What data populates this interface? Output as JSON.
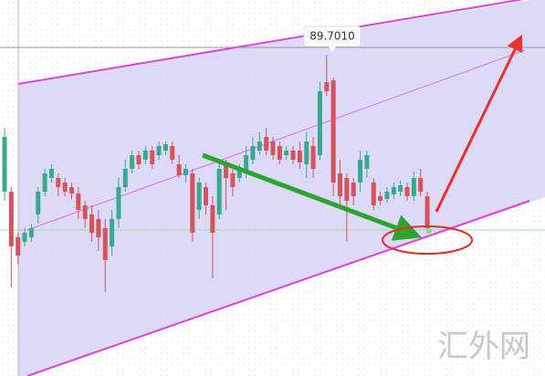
{
  "chart_data": {
    "type": "candlestick",
    "annotation": "89.7010",
    "watermark": "汇外网",
    "ylim": [
      87.94,
      90
    ],
    "up_color": "#3aa88e",
    "down_color": "#d4545c",
    "open": [
      88.95,
      88.95,
      88.7,
      88.675,
      88.7,
      88.825,
      88.95,
      89.025,
      89.025,
      89.0,
      88.975,
      88.94,
      88.875,
      88.825,
      88.8,
      88.75,
      88.65,
      88.8,
      88.975,
      89.075,
      89.15,
      89.125,
      89.175,
      89.15,
      89.175,
      89.2,
      89.1,
      89.04,
      89.05,
      88.85,
      88.975,
      88.875,
      88.825,
      89.1,
      89.05,
      89.025,
      89.05,
      89.125,
      89.175,
      89.25,
      89.225,
      89.2,
      89.15,
      89.175,
      89.175,
      89.1,
      89.2,
      89.15,
      89.55,
      89.56,
      89.05,
      89.025,
      89.0,
      89.0,
      89.075,
      89.0,
      88.925,
      88.91,
      88.935,
      88.95,
      88.975,
      88.925,
      89.025,
      88.925
    ],
    "high": [
      89.3,
      88.975,
      88.725,
      88.75,
      88.775,
      88.975,
      89.075,
      89.1,
      89.05,
      89.025,
      89.0,
      88.975,
      88.9,
      88.875,
      88.85,
      88.8,
      88.85,
      89.025,
      89.125,
      89.175,
      89.175,
      89.2,
      89.2,
      89.225,
      89.225,
      89.225,
      89.15,
      89.1,
      89.075,
      89.025,
      89.0,
      88.925,
      89.125,
      89.125,
      89.075,
      89.1,
      89.2,
      89.25,
      89.275,
      89.3,
      89.25,
      89.225,
      89.2,
      89.2,
      89.225,
      89.275,
      89.25,
      89.55,
      89.7,
      89.575,
      89.125,
      89.05,
      89.025,
      89.175,
      89.175,
      89.025,
      88.95,
      88.975,
      89.0,
      89.01,
      89.0,
      89.06,
      89.075,
      88.95
    ],
    "low": [
      88.9,
      88.425,
      88.55,
      88.65,
      88.675,
      88.775,
      88.925,
      89.0,
      88.925,
      88.925,
      88.91,
      88.8,
      88.75,
      88.675,
      88.625,
      88.4,
      88.6,
      88.75,
      88.95,
      89.05,
      89.075,
      89.1,
      89.075,
      89.125,
      89.15,
      89.1,
      89.025,
      89.0,
      88.675,
      88.8,
      88.825,
      88.475,
      88.8,
      88.85,
      88.925,
      89.0,
      89.025,
      89.1,
      89.15,
      89.15,
      89.125,
      89.1,
      89.125,
      89.1,
      89.075,
      89.025,
      89.025,
      89.125,
      89.475,
      88.925,
      88.875,
      88.675,
      88.875,
      88.95,
      89.025,
      88.85,
      88.875,
      88.89,
      88.91,
      88.925,
      88.9,
      88.9,
      88.925,
      88.725
    ],
    "close": [
      89.25,
      88.65,
      88.6,
      88.725,
      88.75,
      88.95,
      89.05,
      89.075,
      88.975,
      88.95,
      88.94,
      88.85,
      88.8,
      88.725,
      88.7,
      88.575,
      88.8,
      88.975,
      89.075,
      89.15,
      89.1,
      89.175,
      89.1,
      89.2,
      89.21,
      89.125,
      89.04,
      89.075,
      88.725,
      89.0,
      88.875,
      88.725,
      89.075,
      89.025,
      88.975,
      89.075,
      89.15,
      89.2,
      89.225,
      89.175,
      89.15,
      89.125,
      89.175,
      89.125,
      89.11,
      89.225,
      89.075,
      89.5,
      89.5,
      89.0,
      88.925,
      88.9,
      88.925,
      89.125,
      89.15,
      88.875,
      88.9,
      88.95,
      88.975,
      88.985,
      88.925,
      89.025,
      88.95,
      88.75
    ]
  }
}
